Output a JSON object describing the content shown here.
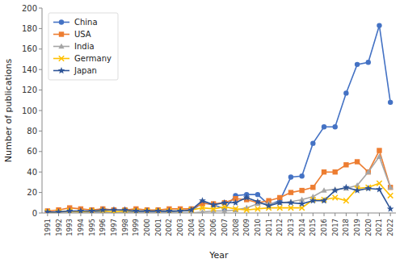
{
  "chart_data": {
    "type": "line",
    "x": [
      1991,
      1992,
      1993,
      1994,
      1995,
      1996,
      1997,
      1998,
      1999,
      2000,
      2001,
      2002,
      2003,
      2004,
      2005,
      2006,
      2007,
      2008,
      2009,
      2010,
      2011,
      2012,
      2013,
      2014,
      2015,
      2016,
      2017,
      2018,
      2019,
      2020,
      2021,
      2022
    ],
    "series": [
      {
        "name": "China",
        "color": "#4472C4",
        "marker": "circle",
        "values": [
          1,
          1,
          2,
          1,
          1,
          1,
          1,
          1,
          1,
          1,
          1,
          1,
          2,
          2,
          10,
          8,
          4,
          17,
          18,
          18,
          8,
          12,
          35,
          36,
          68,
          84,
          84,
          117,
          145,
          147,
          183,
          108
        ]
      },
      {
        "name": "USA",
        "color": "#ED7D31",
        "marker": "square",
        "values": [
          2,
          3,
          5,
          4,
          3,
          4,
          3,
          3,
          4,
          3,
          3,
          4,
          4,
          4,
          9,
          9,
          10,
          14,
          13,
          10,
          12,
          15,
          20,
          22,
          25,
          40,
          40,
          47,
          50,
          40,
          61,
          25
        ]
      },
      {
        "name": "India",
        "color": "#A5A5A5",
        "marker": "triangle",
        "values": [
          0,
          0,
          0,
          0,
          0,
          0,
          0,
          1,
          0,
          0,
          0,
          0,
          0,
          0,
          1,
          2,
          2,
          3,
          5,
          9,
          9,
          10,
          11,
          13,
          16,
          22,
          23,
          24,
          27,
          40,
          55,
          25
        ]
      },
      {
        "name": "Germany",
        "color": "#FFC000",
        "marker": "x",
        "values": [
          1,
          1,
          2,
          1,
          2,
          2,
          1,
          2,
          2,
          2,
          2,
          2,
          2,
          3,
          5,
          4,
          6,
          4,
          3,
          4,
          5,
          5,
          5,
          5,
          13,
          13,
          15,
          12,
          24,
          25,
          29,
          17
        ]
      },
      {
        "name": "Japan",
        "color": "#2F5597",
        "marker": "star",
        "values": [
          1,
          1,
          2,
          2,
          2,
          3,
          3,
          3,
          2,
          2,
          2,
          2,
          2,
          3,
          12,
          8,
          10,
          10,
          15,
          11,
          7,
          10,
          10,
          9,
          12,
          12,
          22,
          25,
          22,
          24,
          23,
          4
        ]
      }
    ],
    "xlim": [
      1990.5,
      2022.5
    ],
    "xticks": [
      1991,
      1992,
      1993,
      1994,
      1995,
      1996,
      1997,
      1998,
      1999,
      2000,
      2001,
      2002,
      2003,
      2004,
      2005,
      2006,
      2007,
      2008,
      2009,
      2010,
      2011,
      2012,
      2013,
      2014,
      2015,
      2016,
      2017,
      2018,
      2019,
      2020,
      2021,
      2022
    ],
    "ylim": [
      0,
      200
    ],
    "yticks": [
      0,
      20,
      40,
      60,
      80,
      100,
      120,
      140,
      160,
      180,
      200
    ],
    "xlabel": "Year",
    "ylabel": "Number of publications",
    "grid": false,
    "legend": "upper left"
  }
}
